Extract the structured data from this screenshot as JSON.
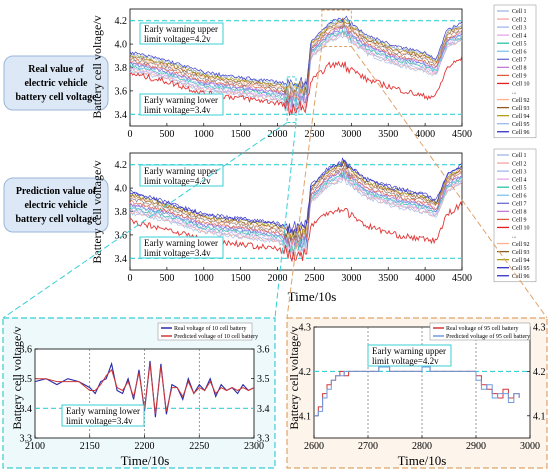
{
  "colors": {
    "warning_line": "#38cfd6",
    "zoom_box_left": "#38cfd6",
    "zoom_box_right": "#e0a36a",
    "bubble_fill": "#dde8f7",
    "bubble_stroke": "#9ab6d8",
    "note_border": "#38cfd6",
    "panel_bg_left": "#eef9fb",
    "panel_bg_right": "#fdf4ec"
  },
  "labels": {
    "top_bubble": [
      "Real value of",
      "electric vehicle",
      "battery cell voltage"
    ],
    "mid_bubble": [
      "Prediction value of",
      "electric vehicle",
      "battery cell voltage"
    ]
  },
  "chart_data": [
    {
      "id": "real",
      "type": "line",
      "ylabel": "Battery cell voltage/v",
      "xlabel": "",
      "xlim": [
        0,
        4500
      ],
      "ylim": [
        3.3,
        4.3
      ],
      "xticks": [
        "0",
        "500",
        "1000",
        "1500",
        "2000",
        "2500",
        "3000",
        "3500",
        "4000",
        "4500"
      ],
      "yticks": [
        "3.4",
        "3.6",
        "3.8",
        "4.0",
        "4.2"
      ],
      "upper_threshold": 4.2,
      "lower_threshold": 3.4,
      "annotations": [
        "Early warning upper",
        "limit voltage=4.2v",
        "Early warning lower",
        "limit voltage=3.4v"
      ],
      "legend": [
        "Cell 1",
        "Cell 2",
        "Cell 3",
        "Cell 4",
        "Cell 5",
        "Cell 6",
        "Cell 7",
        "Cell 8",
        "Cell 9",
        "Cell 10",
        "...",
        "Cell 92",
        "Cell 93",
        "Cell 94",
        "Cell 95",
        "Cell 96"
      ],
      "series_colors": [
        "#9db8e8",
        "#f3a5a0",
        "#a0b9e9",
        "#e8a6ea",
        "#2cc3a6",
        "#7ec3f0",
        "#6b6fd1",
        "#c07dd6",
        "#d9603a",
        "#e02020",
        "#777777",
        "#ffb08a",
        "#8b5a1e",
        "#b0a11c",
        "#9db8e8",
        "#3030c8"
      ],
      "envelope_x": [
        0,
        500,
        1000,
        1500,
        2000,
        2200,
        2400,
        2450,
        2700,
        2900,
        3200,
        3600,
        4000,
        4150,
        4300,
        4500
      ],
      "series_mean": [
        3.85,
        3.78,
        3.68,
        3.64,
        3.6,
        3.55,
        3.58,
        3.95,
        4.1,
        4.15,
        4.0,
        3.9,
        3.85,
        3.8,
        4.05,
        4.1
      ],
      "series_spread": [
        0.1,
        0.1,
        0.1,
        0.09,
        0.1,
        0.12,
        0.1,
        0.09,
        0.1,
        0.1,
        0.1,
        0.1,
        0.1,
        0.09,
        0.09,
        0.1
      ],
      "low_series_values": [
        3.75,
        3.68,
        3.58,
        3.54,
        3.5,
        3.44,
        3.47,
        3.68,
        3.82,
        3.83,
        3.7,
        3.62,
        3.55,
        3.56,
        3.8,
        3.88
      ],
      "zoom_regions": [
        [
          2130,
          2250
        ],
        [
          2600,
          3000
        ]
      ]
    },
    {
      "id": "prediction",
      "type": "line",
      "ylabel": "Battery cell voltage/v",
      "xlabel": "Time/10s",
      "xlim": [
        0,
        4500
      ],
      "ylim": [
        3.3,
        4.3
      ],
      "xticks": [
        "0",
        "500",
        "1000",
        "1500",
        "2000",
        "2500",
        "3000",
        "3500",
        "4000",
        "4500"
      ],
      "yticks": [
        "3.4",
        "3.6",
        "3.8",
        "4.0",
        "4.2"
      ],
      "upper_threshold": 4.2,
      "lower_threshold": 3.4,
      "annotations": [
        "Early warning upper",
        "limit voltage=4.2v",
        "Early warning lower",
        "limit voltage=3.4v"
      ],
      "legend": [
        "Cell 1",
        "Cell 2",
        "Cell 3",
        "Cell 4",
        "Cell 5",
        "Cell 6",
        "Cell 7",
        "Cell 8",
        "Cell 9",
        "Cell 10",
        "...",
        "Cell 92",
        "Cell 93",
        "Cell 94",
        "Cell 95",
        "Cell 96"
      ],
      "series_colors": [
        "#9db8e8",
        "#f3a5a0",
        "#a0b9e9",
        "#e8a6ea",
        "#2cc3a6",
        "#7ec3f0",
        "#6b6fd1",
        "#c07dd6",
        "#d9603a",
        "#e02020",
        "#777777",
        "#ffb08a",
        "#8b5a1e",
        "#b0a11c",
        "#3030c8",
        "#3030c8"
      ],
      "envelope_x": [
        0,
        500,
        1000,
        1500,
        2000,
        2200,
        2400,
        2450,
        2700,
        2900,
        3200,
        3600,
        4000,
        4150,
        4300,
        4500
      ],
      "series_mean": [
        3.88,
        3.8,
        3.7,
        3.66,
        3.62,
        3.55,
        3.6,
        3.95,
        4.1,
        4.15,
        4.0,
        3.92,
        3.87,
        3.82,
        4.05,
        4.12
      ],
      "series_spread": [
        0.12,
        0.1,
        0.1,
        0.1,
        0.1,
        0.13,
        0.1,
        0.09,
        0.1,
        0.1,
        0.1,
        0.1,
        0.1,
        0.09,
        0.09,
        0.1
      ],
      "low_series_values": [
        3.72,
        3.65,
        3.56,
        3.52,
        3.48,
        3.42,
        3.45,
        3.68,
        3.8,
        3.82,
        3.68,
        3.6,
        3.56,
        3.55,
        3.78,
        3.86
      ]
    },
    {
      "id": "zoom-cell10",
      "type": "line",
      "ylabel": "Battery cell voltage/v",
      "xlabel": "Time/10s",
      "xlim": [
        2100,
        2300
      ],
      "ylim": [
        3.3,
        3.6
      ],
      "xticks": [
        "2100",
        "2150",
        "2200",
        "2250",
        "2300"
      ],
      "yticks": [
        "3.3",
        "3.4",
        "3.5",
        "3.6"
      ],
      "lower_threshold": 3.4,
      "annotations": [
        "Early warning lower",
        "limit voltage=3.4v"
      ],
      "series": [
        {
          "name": "Real voltage of 10 cell battery",
          "color": "#2a2aa8"
        },
        {
          "name": "Predicted voltage of 10 cell battery",
          "color": "#d03838"
        }
      ],
      "x": [
        2100,
        2110,
        2120,
        2130,
        2140,
        2150,
        2155,
        2160,
        2165,
        2170,
        2175,
        2180,
        2185,
        2190,
        2195,
        2200,
        2205,
        2210,
        2215,
        2220,
        2225,
        2230,
        2235,
        2240,
        2245,
        2250,
        2255,
        2260,
        2265,
        2270,
        2275,
        2280,
        2285,
        2290,
        2295,
        2300
      ],
      "real_values": [
        3.49,
        3.5,
        3.48,
        3.5,
        3.49,
        3.47,
        3.45,
        3.49,
        3.5,
        3.55,
        3.46,
        3.45,
        3.5,
        3.43,
        3.53,
        3.39,
        3.56,
        3.37,
        3.55,
        3.38,
        3.48,
        3.47,
        3.43,
        3.5,
        3.45,
        3.48,
        3.46,
        3.5,
        3.44,
        3.48,
        3.46,
        3.47,
        3.45,
        3.48,
        3.46,
        3.47
      ],
      "pred_values": [
        3.5,
        3.5,
        3.49,
        3.49,
        3.49,
        3.46,
        3.46,
        3.48,
        3.51,
        3.53,
        3.47,
        3.46,
        3.49,
        3.44,
        3.52,
        3.4,
        3.55,
        3.38,
        3.54,
        3.39,
        3.47,
        3.47,
        3.44,
        3.49,
        3.45,
        3.47,
        3.46,
        3.49,
        3.45,
        3.47,
        3.46,
        3.47,
        3.46,
        3.47,
        3.46,
        3.47
      ]
    },
    {
      "id": "zoom-cell95",
      "type": "line",
      "ylabel": "Battery cell voltage/v",
      "xlabel": "Time/10s",
      "xlim": [
        2600,
        3000
      ],
      "ylim": [
        4.05,
        4.3
      ],
      "xticks": [
        "2600",
        "2700",
        "2800",
        "2900",
        "3000"
      ],
      "yticks": [
        "4.1",
        "4.2",
        "4.3"
      ],
      "upper_threshold": 4.2,
      "annotations": [
        "Early warning upper",
        "limit voltage=4.2v"
      ],
      "series": [
        {
          "name": "Real voltage of 95 cell battery",
          "color": "#d03838"
        },
        {
          "name": "Predicted voltage of 95 cell battery",
          "color": "#6f9be0"
        }
      ],
      "x": [
        2600,
        2608,
        2616,
        2624,
        2632,
        2640,
        2648,
        2656,
        2664,
        2672,
        2680,
        2700,
        2720,
        2740,
        2760,
        2780,
        2800,
        2815,
        2830,
        2850,
        2870,
        2890,
        2900,
        2910,
        2920,
        2930,
        2940,
        2950,
        2960,
        2970,
        2980
      ],
      "real_values": [
        4.1,
        4.12,
        4.15,
        4.17,
        4.18,
        4.19,
        4.2,
        4.19,
        4.2,
        4.2,
        4.2,
        4.2,
        4.21,
        4.2,
        4.2,
        4.2,
        4.21,
        4.2,
        4.2,
        4.2,
        4.2,
        4.2,
        4.19,
        4.17,
        4.16,
        4.15,
        4.14,
        4.16,
        4.14,
        4.15,
        4.14
      ],
      "pred_values": [
        4.1,
        4.11,
        4.14,
        4.16,
        4.18,
        4.19,
        4.19,
        4.2,
        4.2,
        4.2,
        4.2,
        4.2,
        4.21,
        4.2,
        4.2,
        4.2,
        4.21,
        4.2,
        4.2,
        4.2,
        4.2,
        4.2,
        4.18,
        4.16,
        4.17,
        4.14,
        4.15,
        4.15,
        4.13,
        4.15,
        4.14
      ]
    }
  ]
}
